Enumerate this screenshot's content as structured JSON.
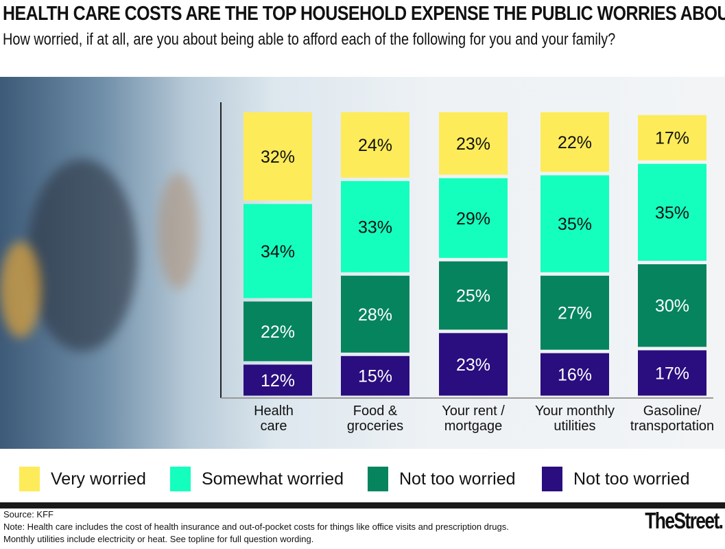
{
  "chart_data": {
    "type": "stacked-bar",
    "title": "HEALTH CARE COSTS ARE THE TOP HOUSEHOLD EXPENSE THE PUBLIC WORRIES ABOUT",
    "subtitle": "How worried, if at all, are you about being able to afford each of the following for you and your family?",
    "categories": [
      [
        "Health",
        "care"
      ],
      [
        "Food &",
        "groceries"
      ],
      [
        "Your rent /",
        "mortgage"
      ],
      [
        "Your monthly",
        "utilities"
      ],
      [
        "Gasoline/",
        "transportation"
      ]
    ],
    "series": [
      {
        "name": "Not too worried",
        "color": "#2a0d7e",
        "text": "#ffffff",
        "values": [
          12,
          15,
          23,
          16,
          17
        ]
      },
      {
        "name": "Not too worried",
        "color": "#05845e",
        "text": "#ffffff",
        "values": [
          22,
          28,
          25,
          27,
          30
        ]
      },
      {
        "name": "Somewhat worried",
        "color": "#14ffbd",
        "text": "#111111",
        "values": [
          34,
          33,
          29,
          35,
          35
        ]
      },
      {
        "name": "Very worried",
        "color": "#fdeb5a",
        "text": "#111111",
        "values": [
          32,
          24,
          23,
          22,
          17
        ]
      }
    ],
    "legend": [
      "Very worried",
      "Somewhat worried",
      "Not too worried",
      "Not too worried"
    ],
    "legend_placement": "bottom",
    "grid": false
  },
  "footer": {
    "source": "Source: KFF",
    "note1": "Note: Health care includes the cost of health insurance and out-of-pocket costs for things like office visits and prescription drugs.",
    "note2": "Monthly utilities include electricity or heat. See topline for full question wording.",
    "logo": "TheStreet."
  }
}
